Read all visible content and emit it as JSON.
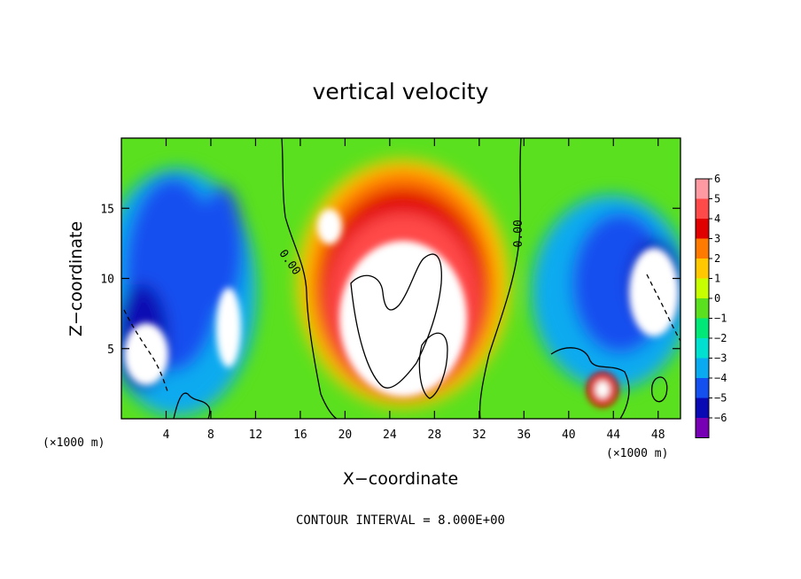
{
  "chart_data": {
    "type": "heatmap",
    "title": "vertical velocity",
    "xlabel": "X−coordinate",
    "ylabel": "Z−coordinate",
    "x_units": "(×1000 m)",
    "y_units": "(×1000 m)",
    "xlim": [
      0,
      50
    ],
    "ylim": [
      0,
      20
    ],
    "x_ticks": [
      4,
      8,
      12,
      16,
      20,
      24,
      28,
      32,
      36,
      40,
      44,
      48
    ],
    "y_ticks": [
      5,
      10,
      15
    ],
    "colorbar": {
      "levels": [
        6,
        5,
        4,
        3,
        2,
        1,
        0,
        -1,
        -2,
        -3,
        -4,
        -5,
        -6
      ],
      "labels": [
        "6",
        "5",
        "4",
        "3",
        "2",
        "1",
        "0",
        "−1",
        "−2",
        "−3",
        "−4",
        "−5",
        "−6"
      ],
      "colors": [
        "#ff9aa2",
        "#ff4a4a",
        "#e00000",
        "#ff7a00",
        "#ffc800",
        "#c8ff00",
        "#5ae01e",
        "#00e878",
        "#00e0d0",
        "#0aaaf0",
        "#1450f0",
        "#0a0ab4",
        "#7800b4"
      ]
    },
    "contour_labels": [
      {
        "text": "0.00",
        "x": 14.8,
        "y": 11.0,
        "rotate": 55
      },
      {
        "text": "0.00",
        "x": 35.8,
        "y": 13.2,
        "rotate": -90
      }
    ],
    "contour_interval_label": "CONTOUR INTERVAL = 8.000E+00",
    "grid": false,
    "features": [
      {
        "region": "central updraft core (white, > 6)",
        "x_range": [
          17.5,
          31
        ],
        "z_range": [
          1,
          12.5
        ]
      },
      {
        "region": "left downdraft (blue/purple, < -4)",
        "x_range": [
          0,
          11
        ],
        "z_range": [
          1,
          15
        ]
      },
      {
        "region": "right downdraft (blue/purple, < -4)",
        "x_range": [
          37,
          50
        ],
        "z_range": [
          3,
          14
        ]
      }
    ]
  }
}
